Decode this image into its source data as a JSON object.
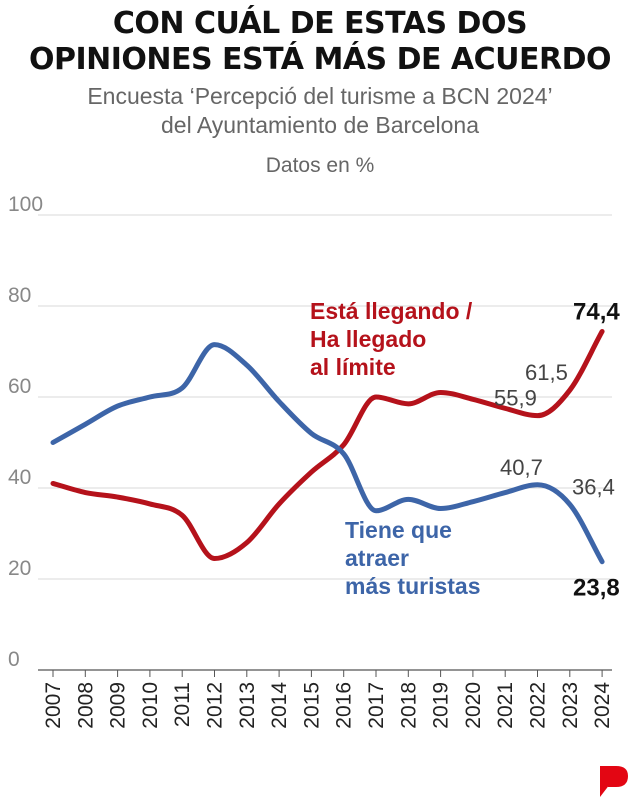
{
  "title_lines": [
    "CON CUÁL DE ESTAS DOS",
    "OPINIONES ESTÁ MÁS DE ACUERDO"
  ],
  "subtitle_lines": [
    "Encuesta ‘Percepció del turisme a BCN 2024’",
    "del Ayuntamiento de Barcelona"
  ],
  "unit_label": "Datos en %",
  "logo_letter": "P",
  "colors": {
    "red": "#b5121b",
    "blue": "#3d65a8",
    "grid": "#d9d9d9",
    "logo": "#e30613"
  },
  "chart_data": {
    "type": "line",
    "title": "CON CUÁL DE ESTAS DOS OPINIONES ESTÁ MÁS DE ACUERDO",
    "xlabel": "",
    "ylabel": "Datos en %",
    "ylim": [
      0,
      100
    ],
    "yticks": [
      "0",
      "20",
      "40",
      "60",
      "80",
      "100"
    ],
    "categories": [
      "2007",
      "2008",
      "2009",
      "2010",
      "2011",
      "2012",
      "2013",
      "2014",
      "2015",
      "2016",
      "2017",
      "2018",
      "2019",
      "2020",
      "2021",
      "2022",
      "2023",
      "2024"
    ],
    "series": [
      {
        "name": "Está llegando / Ha llegado al límite",
        "label_lines": [
          "Está llegando /",
          "Ha llegado",
          "al límite"
        ],
        "color": "#b5121b",
        "values": [
          41,
          39,
          38,
          36.5,
          34,
          24.5,
          28,
          36.5,
          43.5,
          49.5,
          60,
          58.5,
          61,
          59.5,
          57.5,
          55.9,
          61.5,
          74.4
        ]
      },
      {
        "name": "Tiene que atraer más turistas",
        "label_lines": [
          "Tiene que",
          "atraer",
          "más turistas"
        ],
        "color": "#3d65a8",
        "values": [
          50,
          54,
          58,
          60,
          62,
          71.5,
          67,
          59,
          52,
          47.5,
          35,
          37.5,
          35.5,
          37,
          39,
          40.7,
          36.4,
          23.8
        ]
      }
    ],
    "data_labels": [
      {
        "series": 0,
        "index": 15,
        "text": "55,9",
        "bold": false
      },
      {
        "series": 0,
        "index": 16,
        "text": "61,5",
        "bold": false
      },
      {
        "series": 0,
        "index": 17,
        "text": "74,4",
        "bold": true
      },
      {
        "series": 1,
        "index": 15,
        "text": "40,7",
        "bold": false
      },
      {
        "series": 1,
        "index": 16,
        "text": "36,4",
        "bold": false
      },
      {
        "series": 1,
        "index": 17,
        "text": "23,8",
        "bold": true
      }
    ]
  }
}
